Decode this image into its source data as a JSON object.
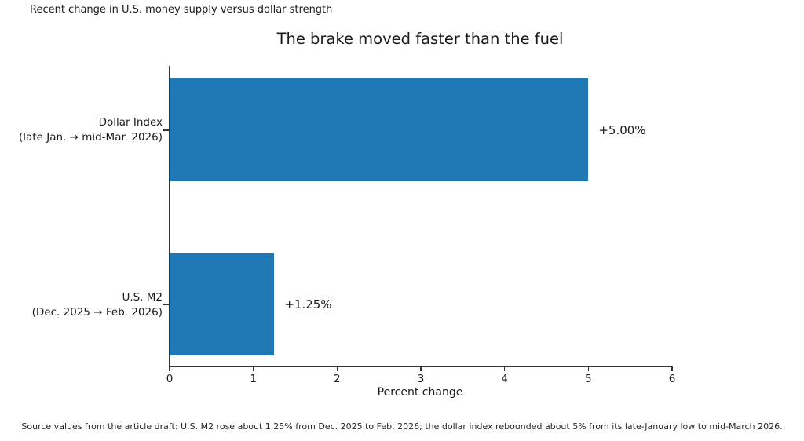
{
  "figure": {
    "suptitle": "Recent change in U.S. money supply versus dollar strength",
    "caption": "Source values from the article draft: U.S. M2 rose about 1.25% from Dec. 2025 to Feb. 2026; the dollar index rebounded about 5% from its late-January low to mid-March 2026."
  },
  "chart_data": {
    "type": "bar",
    "orientation": "horizontal",
    "title": "The brake moved faster than the fuel",
    "xlabel": "Percent change",
    "ylabel": "",
    "xlim": [
      0,
      6
    ],
    "xticks": [
      0,
      1,
      2,
      3,
      4,
      5,
      6
    ],
    "grid": false,
    "legend": false,
    "bar_color": "#1f77b4",
    "categories": [
      {
        "line1": "Dollar Index",
        "line2": "(late Jan. → mid-Mar. 2026)"
      },
      {
        "line1": "U.S. M2",
        "line2": "(Dec. 2025 → Feb. 2026)"
      }
    ],
    "values": [
      5.0,
      1.25
    ],
    "value_labels": [
      "+5.00%",
      "+1.25%"
    ]
  }
}
